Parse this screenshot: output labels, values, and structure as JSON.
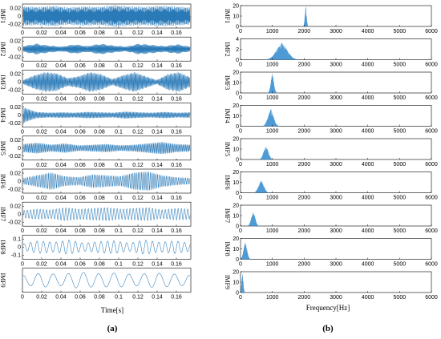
{
  "figure": {
    "caption_a": "(a)",
    "caption_b": "(b)",
    "accent_color": "#2a7ab8"
  },
  "chart_data": [
    {
      "type": "line",
      "panel": "a",
      "title": "",
      "xlabel": "Time[s]",
      "ylabel": "",
      "xlim": [
        0,
        0.175
      ],
      "xticks": [
        "0",
        "0.02",
        "0.04",
        "0.06",
        "0.08",
        "0.1",
        "0.12",
        "0.14",
        "0.16"
      ],
      "xtick_values": [
        0,
        0.02,
        0.04,
        0.06,
        0.08,
        0.1,
        0.12,
        0.14,
        0.16
      ],
      "series": [
        {
          "name": "IMF1",
          "yticks": [
            "0.02",
            "0",
            "-0.02"
          ],
          "ylim": [
            -0.03,
            0.03
          ],
          "amplitude": 0.027,
          "cycles": 340,
          "env": [
            0.9,
            0.85,
            0.95,
            0.8,
            0.9,
            0.85,
            1,
            0.9,
            0.85,
            0.95,
            0.9,
            0.8
          ]
        },
        {
          "name": "IMF2",
          "yticks": [
            "0.02",
            "0",
            "-0.02"
          ],
          "ylim": [
            -0.03,
            0.03
          ],
          "amplitude": 0.015,
          "cycles": 220,
          "env": [
            0.5,
            0.9,
            0.6,
            0.4,
            0.8,
            0.5,
            0.9,
            0.6,
            0.4,
            0.9,
            0.7,
            0.5,
            0.8,
            0.4
          ]
        },
        {
          "name": "IMF3",
          "yticks": [
            "0.02",
            "0",
            "-0.02"
          ],
          "ylim": [
            -0.03,
            0.03
          ],
          "amplitude": 0.025,
          "cycles": 170,
          "env": [
            0.2,
            0.7,
            1,
            0.9,
            0.4,
            0.6,
            1,
            0.8,
            0.3,
            0.7,
            1,
            0.6,
            0.2,
            0.8,
            1,
            0.5
          ]
        },
        {
          "name": "IMF4",
          "yticks": [
            "0.02",
            "0",
            "-0.02"
          ],
          "ylim": [
            -0.03,
            0.03
          ],
          "amplitude": 0.02,
          "cycles": 160,
          "env": [
            1,
            0.4,
            0.3,
            0.35,
            0.3,
            0.4,
            0.35,
            0.3,
            0.45,
            0.35,
            0.3,
            0.4,
            0.3,
            0.35
          ]
        },
        {
          "name": "IMF5",
          "yticks": [
            "0.02",
            "0",
            "-0.02"
          ],
          "ylim": [
            -0.03,
            0.03
          ],
          "amplitude": 0.017,
          "cycles": 130,
          "env": [
            0.6,
            0.8,
            0.5,
            0.7,
            0.4,
            0.5,
            0.6,
            0.4,
            0.5,
            0.7,
            0.9,
            0.6,
            0.5
          ]
        },
        {
          "name": "IMF6",
          "yticks": [
            "0.02",
            "0",
            "-0.02"
          ],
          "ylim": [
            -0.03,
            0.03
          ],
          "amplitude": 0.024,
          "cycles": 95,
          "env": [
            0.3,
            0.6,
            0.9,
            0.5,
            0.4,
            0.7,
            0.6,
            0.5,
            0.9,
            1,
            0.6,
            0.4,
            0.3
          ]
        },
        {
          "name": "IMF7",
          "yticks": [
            "0.02",
            "0",
            "-0.02"
          ],
          "ylim": [
            -0.03,
            0.03
          ],
          "amplitude": 0.018,
          "cycles": 52,
          "env": [
            0.5,
            0.7,
            0.6,
            0.9,
            0.7,
            0.8,
            0.9,
            0.7,
            0.8,
            0.9,
            0.6,
            0.8,
            0.7
          ]
        },
        {
          "name": "IMF8",
          "yticks": [
            "0.1",
            "0",
            "-0.1"
          ],
          "ylim": [
            -0.15,
            0.15
          ],
          "amplitude": 0.1,
          "cycles": 26,
          "env": [
            0.4,
            0.8,
            0.6,
            0.9,
            0.5,
            0.7,
            0.8,
            0.5,
            0.9,
            0.6,
            0.8,
            0.5
          ]
        },
        {
          "name": "IMF9",
          "yticks": [],
          "ylim": [
            -0.15,
            0.15
          ],
          "amplitude": 0.1,
          "cycles": 11,
          "env": [
            0.6,
            0.9,
            0.7,
            1,
            0.8,
            0.9,
            0.7,
            0.9,
            0.8,
            0.6
          ]
        }
      ]
    },
    {
      "type": "line",
      "panel": "b",
      "title": "",
      "xlabel": "Frequency[Hz]",
      "ylabel": "",
      "xlim": [
        0,
        6000
      ],
      "xticks": [
        "0",
        "1000",
        "2000",
        "3000",
        "4000",
        "5000",
        "6000"
      ],
      "xtick_values": [
        0,
        1000,
        2000,
        3000,
        4000,
        5000,
        6000
      ],
      "series": [
        {
          "name": "IMF1",
          "yticks": [
            "20",
            "10",
            "0"
          ],
          "ylim": [
            0,
            20
          ],
          "peak_hz": 2050,
          "peak": 19,
          "spread_hz": 40
        },
        {
          "name": "IMF2",
          "yticks": [
            "4",
            "2",
            "0"
          ],
          "ylim": [
            0,
            4
          ],
          "peak_hz": 1300,
          "peak": 3.2,
          "spread_hz": 250
        },
        {
          "name": "IMF3",
          "yticks": [
            "20",
            "10",
            "0"
          ],
          "ylim": [
            0,
            20
          ],
          "peak_hz": 1000,
          "peak": 19,
          "spread_hz": 70
        },
        {
          "name": "IMF4",
          "yticks": [
            "20",
            "10",
            "0"
          ],
          "ylim": [
            0,
            20
          ],
          "peak_hz": 950,
          "peak": 16,
          "spread_hz": 130
        },
        {
          "name": "IMF5",
          "yticks": [
            "20",
            "10",
            "0"
          ],
          "ylim": [
            0,
            20
          ],
          "peak_hz": 800,
          "peak": 13,
          "spread_hz": 110
        },
        {
          "name": "IMF6",
          "yticks": [
            "20",
            "10",
            "0"
          ],
          "ylim": [
            0,
            20
          ],
          "peak_hz": 650,
          "peak": 12,
          "spread_hz": 120
        },
        {
          "name": "IMF7",
          "yticks": [
            "20",
            "10",
            "0"
          ],
          "ylim": [
            0,
            20
          ],
          "peak_hz": 400,
          "peak": 14,
          "spread_hz": 90
        },
        {
          "name": "IMF8",
          "yticks": [
            "20",
            "10",
            "0"
          ],
          "ylim": [
            0,
            20
          ],
          "peak_hz": 150,
          "peak": 17,
          "spread_hz": 80
        },
        {
          "name": "IMF9",
          "yticks": [
            "20",
            "10",
            "0"
          ],
          "ylim": [
            0,
            20
          ],
          "peak_hz": 60,
          "peak": 18,
          "spread_hz": 40
        }
      ]
    }
  ]
}
